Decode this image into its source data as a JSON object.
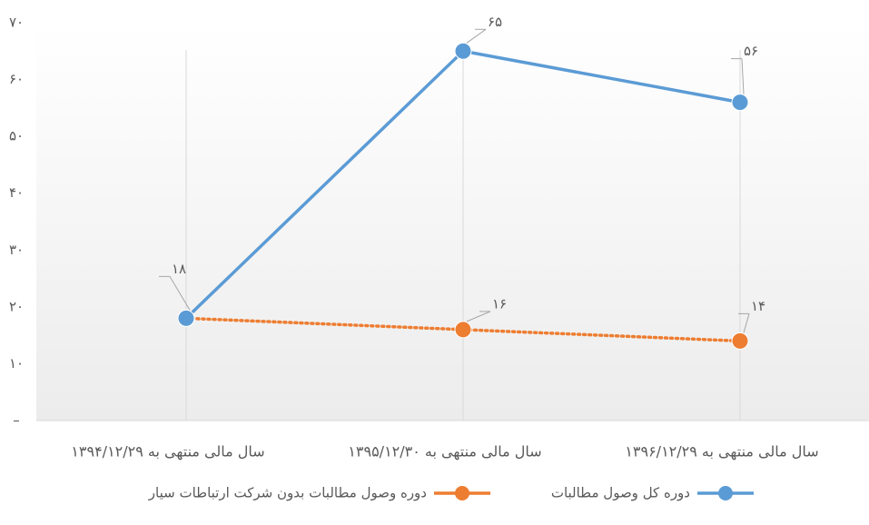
{
  "chart_data": {
    "type": "line",
    "categories": [
      "سال مالی منتهی به ۱۳۹۴/۱۲/۲۹",
      "سال مالی منتهی به ۱۳۹۵/۱۲/۳۰",
      "سال مالی منتهی به ۱۳۹۶/۱۲/۲۹"
    ],
    "series": [
      {
        "name": "دوره کل وصول مطالبات",
        "color": "#5b9bd5",
        "values": [
          18,
          65,
          56
        ],
        "value_labels": [
          "۱۸",
          "۶۵",
          "۵۶"
        ],
        "style": "solid"
      },
      {
        "name": "دوره وصول مطالبات بدون شرکت ارتباطات سیار",
        "color": "#ed7d31",
        "values": [
          18,
          16,
          14
        ],
        "value_labels": [
          null,
          "۱۶",
          "۱۴"
        ],
        "style": "dotted"
      }
    ],
    "ylim": [
      0,
      70
    ],
    "yticks": [
      {
        "value": 0,
        "label": "–"
      },
      {
        "value": 10,
        "label": "۱۰"
      },
      {
        "value": 20,
        "label": "۲۰"
      },
      {
        "value": 30,
        "label": "۳۰"
      },
      {
        "value": 40,
        "label": "۴۰"
      },
      {
        "value": 50,
        "label": "۵۰"
      },
      {
        "value": 60,
        "label": "۶۰"
      },
      {
        "value": 70,
        "label": "۷۰"
      }
    ],
    "legend": "bottom"
  }
}
